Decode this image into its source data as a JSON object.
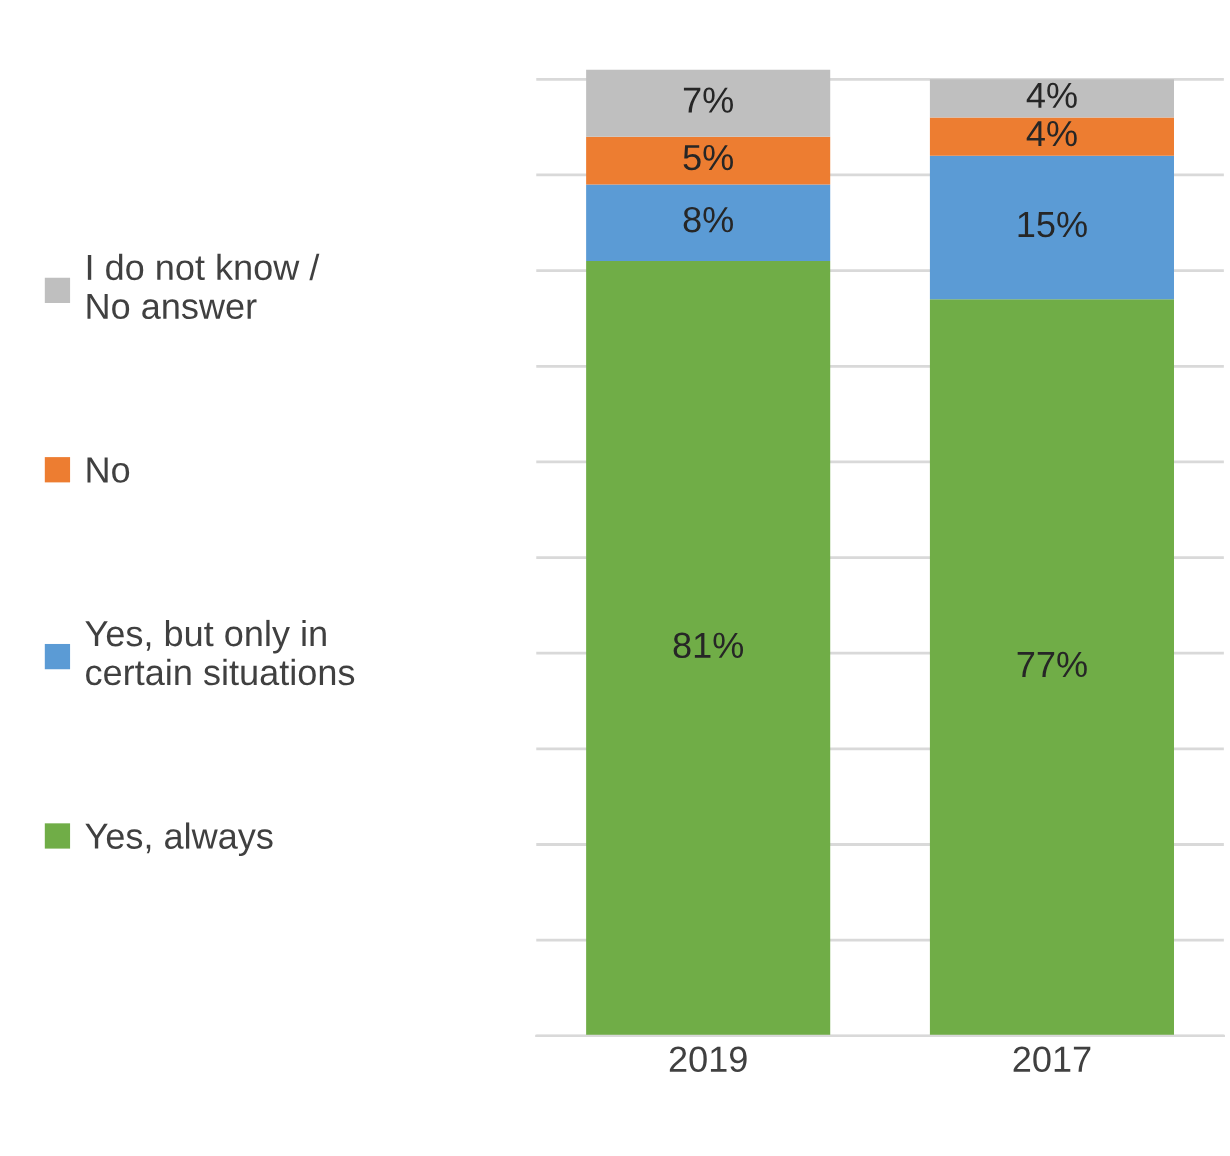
{
  "chart_data": {
    "type": "bar",
    "stacked": true,
    "categories": [
      "2019",
      "2017"
    ],
    "series": [
      {
        "name": "Yes, always",
        "color": "#70ad47",
        "values": [
          81,
          77
        ],
        "value_labels": [
          "81%",
          "77%"
        ]
      },
      {
        "name": "Yes, but only in\ncertain situations",
        "color": "#5b9bd5",
        "values": [
          8,
          15
        ],
        "value_labels": [
          "8%",
          "15%"
        ]
      },
      {
        "name": "No",
        "color": "#ed7d31",
        "values": [
          5,
          4
        ],
        "value_labels": [
          "5%",
          "4%"
        ]
      },
      {
        "name": "I do not know /\nNo answer",
        "color": "#bfbfbf",
        "values": [
          7,
          4
        ],
        "value_labels": [
          "7%",
          "4%"
        ]
      }
    ],
    "yticks": [
      {
        "value": 0,
        "label": null
      },
      {
        "value": 10,
        "label": null
      },
      {
        "value": 20,
        "label": null
      },
      {
        "value": 30,
        "label": null
      },
      {
        "value": 40,
        "label": null
      },
      {
        "value": 50,
        "label": null
      },
      {
        "value": 60,
        "label": null
      },
      {
        "value": 70,
        "label": null
      },
      {
        "value": 80,
        "label": null
      },
      {
        "value": 90,
        "label": null
      },
      {
        "value": 100,
        "label": null
      }
    ],
    "tick_labels": "x",
    "grid": "y",
    "legend": "left"
  }
}
